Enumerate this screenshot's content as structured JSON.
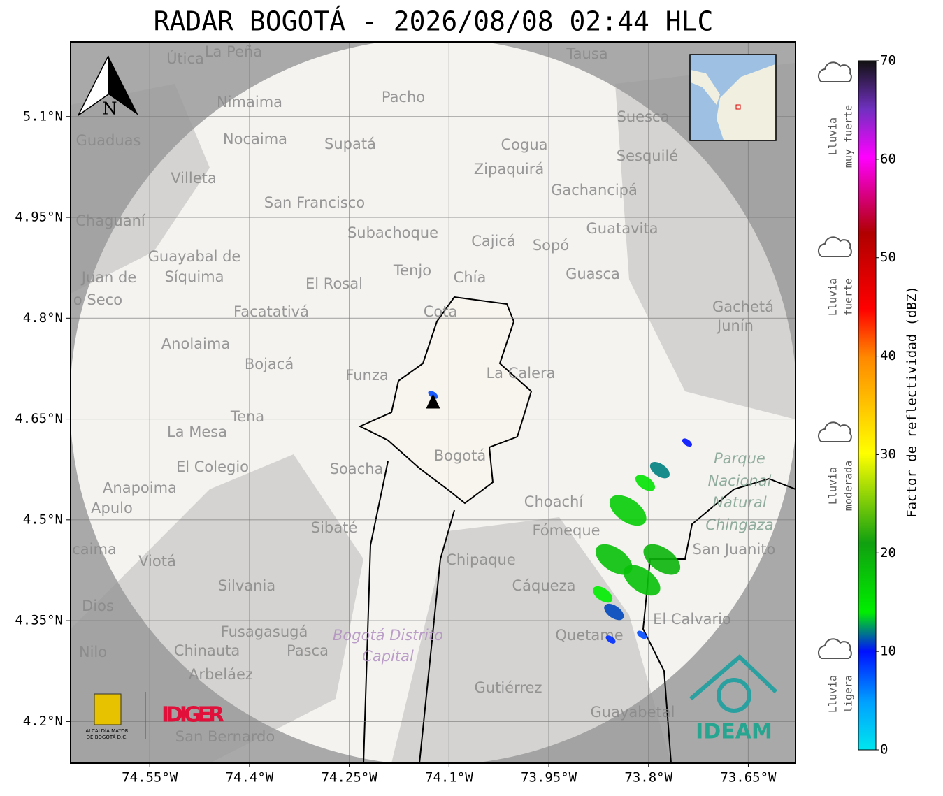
{
  "title": "RADAR BOGOTÁ - 2026/08/08 02:44 HLC",
  "map": {
    "xlim": [
      -74.669,
      -73.579
    ],
    "ylim": [
      4.138,
      5.211
    ],
    "xticks": [
      {
        "value": -74.55,
        "label": "74.55°W"
      },
      {
        "value": -74.4,
        "label": "74.4°W"
      },
      {
        "value": -74.25,
        "label": "74.25°W"
      },
      {
        "value": -74.1,
        "label": "74.1°W"
      },
      {
        "value": -73.95,
        "label": "73.95°W"
      },
      {
        "value": -73.8,
        "label": "73.8°W"
      },
      {
        "value": -73.65,
        "label": "73.65°W"
      }
    ],
    "yticks": [
      {
        "value": 5.1,
        "label": "5.1°N"
      },
      {
        "value": 4.95,
        "label": "4.95°N"
      },
      {
        "value": 4.8,
        "label": "4.8°N"
      },
      {
        "value": 4.65,
        "label": "4.65°N"
      },
      {
        "value": 4.5,
        "label": "4.5°N"
      },
      {
        "value": 4.35,
        "label": "4.35°N"
      },
      {
        "value": 4.2,
        "label": "4.2°N"
      }
    ],
    "grid": true,
    "radar_site": {
      "lon": -74.124,
      "lat": 4.675
    },
    "places": [
      "La Peña",
      "Útica",
      "Tausa",
      "Pacho",
      "Nimaima",
      "Suesca",
      "Guaduas",
      "Nocaima",
      "Supatá",
      "Cogua",
      "Sesquilé",
      "Zipaquirá",
      "Villeta",
      "Gachancipá",
      "San Francisco",
      "Chaguaní",
      "Guatavita",
      "Subachoque",
      "Cajicá",
      "Sopó",
      "Guayabal de",
      "Síquima",
      "Tenjo",
      "Guasca",
      "Chía",
      "El Rosal",
      "Juan de",
      "o Seco",
      "Gachetá",
      "Junín",
      "Facatativá",
      "Cota",
      "Anolaima",
      "Bojacá",
      "La Calera",
      "Funza",
      "Tena",
      "La Mesa",
      "Bogotá",
      "Parque",
      "Nacional",
      "Natural",
      "Chingaza",
      "El Colegio",
      "Soacha",
      "Anapoima",
      "Apulo",
      "Choachí",
      "Fómeque",
      "Sibaté",
      "San Juanito",
      "caima",
      "Viotá",
      "Chipaque",
      "Silvania",
      "Cáqueza",
      "Dios",
      "El Calvario",
      "Fusagasugá",
      "Bogotá Distrito",
      "Capital",
      "Quetame",
      "Nilo",
      "Chinauta",
      "Pasca",
      "Arbeláez",
      "Gutiérrez",
      "Guayabetal",
      "San Bernardo"
    ],
    "echoes": [
      {
        "lon": -73.852,
        "lat": 4.441,
        "dbz": 18
      },
      {
        "lon": -73.831,
        "lat": 4.514,
        "dbz": 17
      },
      {
        "lon": -73.805,
        "lat": 4.555,
        "dbz": 15
      },
      {
        "lon": -73.742,
        "lat": 4.615,
        "dbz": 10
      },
      {
        "lon": -73.783,
        "lat": 4.574,
        "dbz": 12
      },
      {
        "lon": -73.869,
        "lat": 4.389,
        "dbz": 14
      },
      {
        "lon": -73.852,
        "lat": 4.363,
        "dbz": 11
      },
      {
        "lon": -73.81,
        "lat": 4.41,
        "dbz": 18
      },
      {
        "lon": -73.78,
        "lat": 4.441,
        "dbz": 19
      },
      {
        "lon": -74.124,
        "lat": 4.686,
        "dbz": 8
      },
      {
        "lon": -73.857,
        "lat": 4.322,
        "dbz": 9
      },
      {
        "lon": -73.81,
        "lat": 4.329,
        "dbz": 8
      }
    ]
  },
  "colorbar": {
    "label": "Factor de reflectividad (dBZ)",
    "lim": [
      0,
      70
    ],
    "ticks": [
      0,
      10,
      20,
      30,
      40,
      50,
      60,
      70
    ]
  },
  "intensity_labels": [
    [
      "Lluvia",
      "muy fuerte"
    ],
    [
      "Lluvia",
      "fuerte"
    ],
    [
      "Lluvia",
      "moderada"
    ],
    [
      "Lluvia",
      "ligera"
    ]
  ],
  "north": "N",
  "logos": {
    "idiger": "IDIGER",
    "ideam": "IDEAM",
    "alcaldia": [
      "ALCALDÍA MAYOR",
      "DE BOGOTÁ D.C."
    ]
  }
}
